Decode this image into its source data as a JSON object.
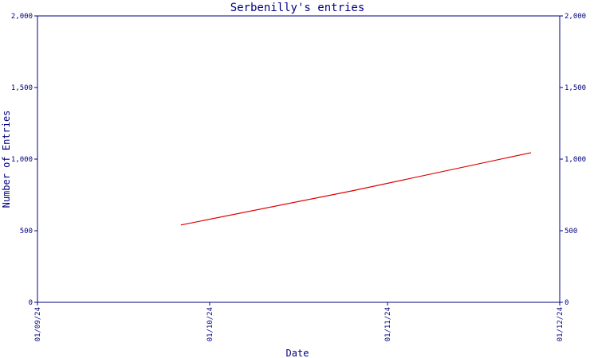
{
  "chart_data": {
    "type": "line",
    "title": "Serbenilly's entries",
    "xlabel": "Date",
    "ylabel": "Number of Entries",
    "ylim": [
      0,
      2000
    ],
    "xlim": [
      "2024-09-01",
      "2024-12-01"
    ],
    "y_ticks": [
      0,
      500,
      1000,
      1500,
      2000
    ],
    "y_tick_labels": [
      "0",
      "500",
      "1,000",
      "1,500",
      "2,000"
    ],
    "x_ticks": [
      "2024-09-01",
      "2024-10-01",
      "2024-11-01",
      "2024-12-01"
    ],
    "x_tick_labels": [
      "01/09/24",
      "01/10/24",
      "01/11/24",
      "01/12/24"
    ],
    "series": [
      {
        "color": "#dd0000",
        "points": [
          {
            "x": "2024-09-26",
            "y": 540
          },
          {
            "x": "2024-10-26",
            "y": 780
          },
          {
            "x": "2024-11-26",
            "y": 1045
          }
        ]
      }
    ],
    "axis_color": "#000080",
    "grid": false
  }
}
